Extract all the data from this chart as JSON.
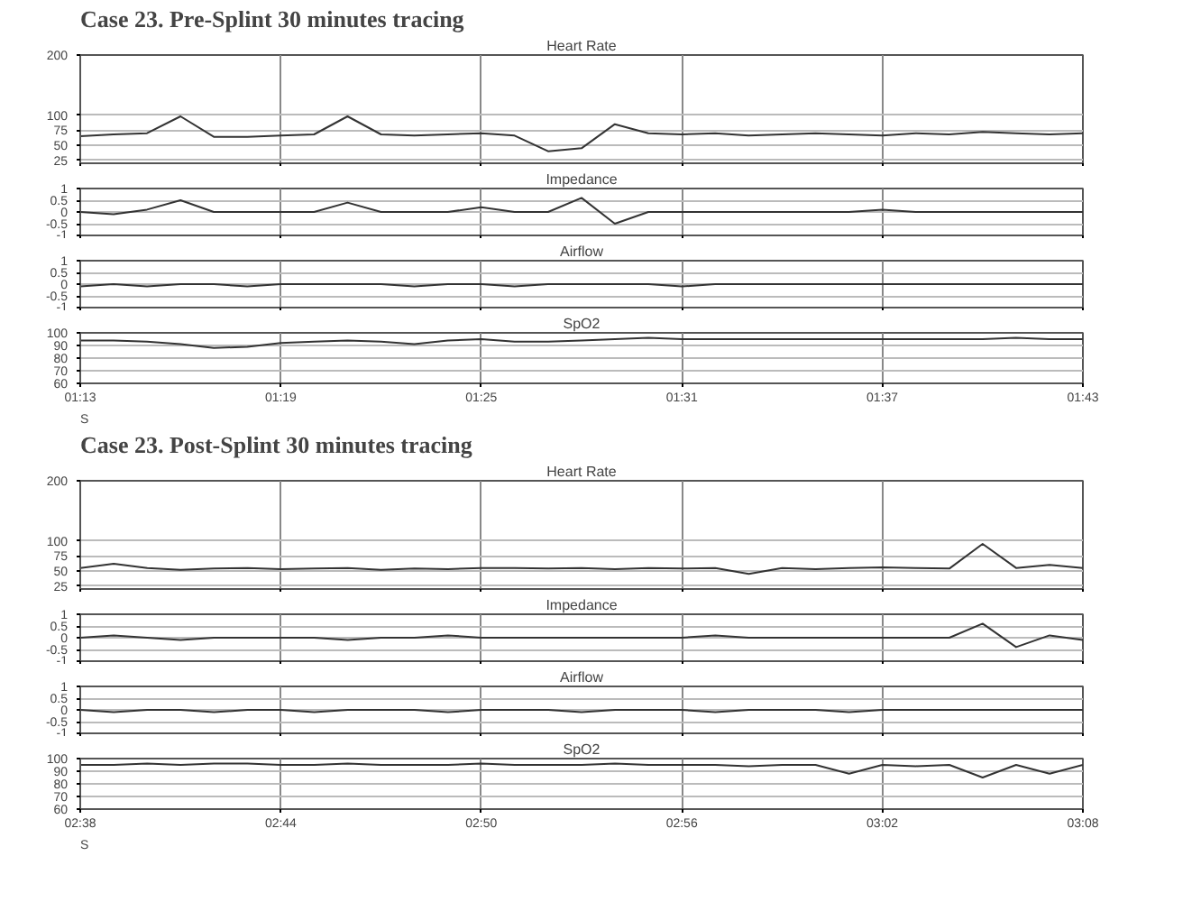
{
  "chart_data": [
    {
      "type": "line",
      "title": "Case 23. Pre-Splint 30 minutes tracing",
      "subtitle": "Heart Rate",
      "x": [
        1.2167,
        1.2333,
        1.25,
        1.2667,
        1.2833,
        1.3,
        1.3167,
        1.3333,
        1.35,
        1.3667,
        1.3833,
        1.4,
        1.4167,
        1.4333,
        1.45,
        1.4667,
        1.4833,
        1.5,
        1.5167,
        1.5333,
        1.55,
        1.5667,
        1.5833,
        1.6,
        1.6167,
        1.6333,
        1.65,
        1.6667,
        1.6833,
        1.7,
        1.7167
      ],
      "series": [
        {
          "color": "#333333",
          "values": [
            65,
            68,
            70,
            98,
            64,
            64,
            66,
            68,
            98,
            68,
            66,
            68,
            70,
            66,
            40,
            45,
            85,
            70,
            68,
            70,
            66,
            68,
            70,
            68,
            66,
            70,
            68,
            72,
            70,
            68,
            70
          ]
        }
      ],
      "xlim": [
        1.2167,
        1.7167
      ],
      "xticks": [
        {
          "value": 1.2167,
          "label": null
        },
        {
          "value": 1.3167,
          "label": null
        },
        {
          "value": 1.4167,
          "label": null
        },
        {
          "value": 1.5167,
          "label": null
        },
        {
          "value": 1.6167,
          "label": null
        },
        {
          "value": 1.7167,
          "label": null
        }
      ],
      "ylim": [
        20,
        200
      ],
      "yticks": [
        25,
        50,
        75,
        100,
        200
      ],
      "grid": true,
      "tick_labels": "y"
    },
    {
      "type": "line",
      "title": "Impedance",
      "x": [
        1.2167,
        1.2333,
        1.25,
        1.2667,
        1.2833,
        1.3,
        1.3167,
        1.3333,
        1.35,
        1.3667,
        1.3833,
        1.4,
        1.4167,
        1.4333,
        1.45,
        1.4667,
        1.4833,
        1.5,
        1.5167,
        1.5333,
        1.55,
        1.5667,
        1.5833,
        1.6,
        1.6167,
        1.6333,
        1.65,
        1.6667,
        1.6833,
        1.7,
        1.7167
      ],
      "series": [
        {
          "color": "#333333",
          "values": [
            0,
            -0.1,
            0.1,
            0.5,
            0,
            0,
            0,
            0,
            0.4,
            0,
            0,
            0,
            0.2,
            0,
            0,
            0.6,
            -0.5,
            0,
            0,
            0,
            0,
            0,
            0,
            0,
            0.1,
            0,
            0,
            0,
            0,
            0,
            0
          ]
        }
      ],
      "xlim": [
        1.2167,
        1.7167
      ],
      "xticks": [
        {
          "value": 1.2167,
          "label": null
        },
        {
          "value": 1.3167,
          "label": null
        },
        {
          "value": 1.4167,
          "label": null
        },
        {
          "value": 1.5167,
          "label": null
        },
        {
          "value": 1.6167,
          "label": null
        },
        {
          "value": 1.7167,
          "label": null
        }
      ],
      "ylim": [
        -1,
        1
      ],
      "yticks": [
        -1,
        -0.5,
        0,
        0.5,
        1
      ],
      "grid": true,
      "tick_labels": "y"
    },
    {
      "type": "line",
      "title": "Airflow",
      "x": [
        1.2167,
        1.2333,
        1.25,
        1.2667,
        1.2833,
        1.3,
        1.3167,
        1.3333,
        1.35,
        1.3667,
        1.3833,
        1.4,
        1.4167,
        1.4333,
        1.45,
        1.4667,
        1.4833,
        1.5,
        1.5167,
        1.5333,
        1.55,
        1.5667,
        1.5833,
        1.6,
        1.6167,
        1.6333,
        1.65,
        1.6667,
        1.6833,
        1.7,
        1.7167
      ],
      "series": [
        {
          "color": "#333333",
          "values": [
            -0.1,
            0,
            -0.1,
            0,
            0,
            -0.1,
            0,
            0,
            0,
            0,
            -0.1,
            0,
            0,
            -0.1,
            0,
            0,
            0,
            0,
            -0.1,
            0,
            0,
            0,
            0,
            0,
            0,
            0,
            0,
            0,
            0,
            0,
            0
          ]
        }
      ],
      "xlim": [
        1.2167,
        1.7167
      ],
      "xticks": [
        {
          "value": 1.2167,
          "label": null
        },
        {
          "value": 1.3167,
          "label": null
        },
        {
          "value": 1.4167,
          "label": null
        },
        {
          "value": 1.5167,
          "label": null
        },
        {
          "value": 1.6167,
          "label": null
        },
        {
          "value": 1.7167,
          "label": null
        }
      ],
      "ylim": [
        -1,
        1
      ],
      "yticks": [
        -1,
        -0.5,
        0,
        0.5,
        1
      ],
      "grid": true,
      "tick_labels": "y"
    },
    {
      "type": "line",
      "title": "SpO2",
      "annotations": [
        "S"
      ],
      "x": [
        1.2167,
        1.2333,
        1.25,
        1.2667,
        1.2833,
        1.3,
        1.3167,
        1.3333,
        1.35,
        1.3667,
        1.3833,
        1.4,
        1.4167,
        1.4333,
        1.45,
        1.4667,
        1.4833,
        1.5,
        1.5167,
        1.5333,
        1.55,
        1.5667,
        1.5833,
        1.6,
        1.6167,
        1.6333,
        1.65,
        1.6667,
        1.6833,
        1.7,
        1.7167
      ],
      "series": [
        {
          "color": "#333333",
          "values": [
            94,
            94,
            93,
            91,
            88,
            89,
            92,
            93,
            94,
            93,
            91,
            94,
            95,
            93,
            93,
            94,
            95,
            96,
            95,
            95,
            95,
            95,
            95,
            95,
            95,
            95,
            95,
            95,
            96,
            95,
            95
          ]
        }
      ],
      "xlim": [
        1.2167,
        1.7167
      ],
      "xticks": [
        {
          "value": 1.2167,
          "label": "01:13"
        },
        {
          "value": 1.3167,
          "label": "01:19"
        },
        {
          "value": 1.4167,
          "label": "01:25"
        },
        {
          "value": 1.5167,
          "label": "01:31"
        },
        {
          "value": 1.6167,
          "label": "01:37"
        },
        {
          "value": 1.7167,
          "label": "01:43"
        }
      ],
      "ylim": [
        60,
        100
      ],
      "yticks": [
        60,
        70,
        80,
        90,
        100
      ],
      "grid": true
    },
    {
      "type": "line",
      "title": "Case 23. Post-Splint 30 minutes tracing",
      "subtitle": "Heart Rate",
      "x": [
        2.6333,
        2.65,
        2.6667,
        2.6833,
        2.7,
        2.7167,
        2.7333,
        2.75,
        2.7667,
        2.7833,
        2.8,
        2.8167,
        2.8333,
        2.85,
        2.8667,
        2.8833,
        2.9,
        2.9167,
        2.9333,
        2.95,
        2.9667,
        2.9833,
        3.0,
        3.0167,
        3.0333,
        3.05,
        3.0667,
        3.0833,
        3.1,
        3.1167,
        3.1333
      ],
      "series": [
        {
          "color": "#333333",
          "values": [
            55,
            62,
            55,
            52,
            54,
            55,
            53,
            54,
            55,
            52,
            54,
            53,
            55,
            55,
            54,
            55,
            53,
            55,
            54,
            55,
            45,
            55,
            53,
            55,
            56,
            55,
            54,
            95,
            55,
            60,
            55
          ]
        }
      ],
      "xlim": [
        2.6333,
        3.1333
      ],
      "xticks": [
        {
          "value": 2.6333,
          "label": null
        },
        {
          "value": 2.7333,
          "label": null
        },
        {
          "value": 2.8333,
          "label": null
        },
        {
          "value": 2.9333,
          "label": null
        },
        {
          "value": 3.0333,
          "label": null
        },
        {
          "value": 3.1333,
          "label": null
        }
      ],
      "ylim": [
        20,
        200
      ],
      "yticks": [
        25,
        50,
        75,
        100,
        200
      ],
      "grid": true,
      "tick_labels": "y"
    },
    {
      "type": "line",
      "title": "Impedance",
      "x": [
        2.6333,
        2.65,
        2.6667,
        2.6833,
        2.7,
        2.7167,
        2.7333,
        2.75,
        2.7667,
        2.7833,
        2.8,
        2.8167,
        2.8333,
        2.85,
        2.8667,
        2.8833,
        2.9,
        2.9167,
        2.9333,
        2.95,
        2.9667,
        2.9833,
        3.0,
        3.0167,
        3.0333,
        3.05,
        3.0667,
        3.0833,
        3.1,
        3.1167,
        3.1333
      ],
      "series": [
        {
          "color": "#333333",
          "values": [
            0,
            0.1,
            0,
            -0.1,
            0,
            0,
            0,
            0,
            -0.1,
            0,
            0,
            0.1,
            0,
            0,
            0,
            0,
            0,
            0,
            0,
            0.1,
            0,
            0,
            0,
            0,
            0,
            0,
            0,
            0.6,
            -0.4,
            0.1,
            -0.1
          ]
        }
      ],
      "xlim": [
        2.6333,
        3.1333
      ],
      "xticks": [
        {
          "value": 2.6333,
          "label": null
        },
        {
          "value": 2.7333,
          "label": null
        },
        {
          "value": 2.8333,
          "label": null
        },
        {
          "value": 2.9333,
          "label": null
        },
        {
          "value": 3.0333,
          "label": null
        },
        {
          "value": 3.1333,
          "label": null
        }
      ],
      "ylim": [
        -1,
        1
      ],
      "yticks": [
        -1,
        -0.5,
        0,
        0.5,
        1
      ],
      "grid": true,
      "tick_labels": "y"
    },
    {
      "type": "line",
      "title": "Airflow",
      "x": [
        2.6333,
        2.65,
        2.6667,
        2.6833,
        2.7,
        2.7167,
        2.7333,
        2.75,
        2.7667,
        2.7833,
        2.8,
        2.8167,
        2.8333,
        2.85,
        2.8667,
        2.8833,
        2.9,
        2.9167,
        2.9333,
        2.95,
        2.9667,
        2.9833,
        3.0,
        3.0167,
        3.0333,
        3.05,
        3.0667,
        3.0833,
        3.1,
        3.1167,
        3.1333
      ],
      "series": [
        {
          "color": "#333333",
          "values": [
            0,
            -0.1,
            0,
            0,
            -0.1,
            0,
            0,
            -0.1,
            0,
            0,
            0,
            -0.1,
            0,
            0,
            0,
            -0.1,
            0,
            0,
            0,
            -0.1,
            0,
            0,
            0,
            -0.1,
            0,
            0,
            0,
            0,
            0,
            0,
            0
          ]
        }
      ],
      "xlim": [
        2.6333,
        3.1333
      ],
      "xticks": [
        {
          "value": 2.6333,
          "label": null
        },
        {
          "value": 2.7333,
          "label": null
        },
        {
          "value": 2.8333,
          "label": null
        },
        {
          "value": 2.9333,
          "label": null
        },
        {
          "value": 3.0333,
          "label": null
        },
        {
          "value": 3.1333,
          "label": null
        }
      ],
      "ylim": [
        -1,
        1
      ],
      "yticks": [
        -1,
        -0.5,
        0,
        0.5,
        1
      ],
      "grid": true,
      "tick_labels": "y"
    },
    {
      "type": "line",
      "title": "SpO2",
      "annotations": [
        "S"
      ],
      "x": [
        2.6333,
        2.65,
        2.6667,
        2.6833,
        2.7,
        2.7167,
        2.7333,
        2.75,
        2.7667,
        2.7833,
        2.8,
        2.8167,
        2.8333,
        2.85,
        2.8667,
        2.8833,
        2.9,
        2.9167,
        2.9333,
        2.95,
        2.9667,
        2.9833,
        3.0,
        3.0167,
        3.0333,
        3.05,
        3.0667,
        3.0833,
        3.1,
        3.1167,
        3.1333
      ],
      "series": [
        {
          "color": "#333333",
          "values": [
            95,
            95,
            96,
            95,
            96,
            96,
            95,
            95,
            96,
            95,
            95,
            95,
            96,
            95,
            95,
            95,
            96,
            95,
            95,
            95,
            94,
            95,
            95,
            88,
            95,
            94,
            95,
            85,
            95,
            88,
            95
          ]
        }
      ],
      "xlim": [
        2.6333,
        3.1333
      ],
      "xticks": [
        {
          "value": 2.6333,
          "label": "02:38"
        },
        {
          "value": 2.7333,
          "label": "02:44"
        },
        {
          "value": 2.8333,
          "label": "02:50"
        },
        {
          "value": 2.9333,
          "label": "02:56"
        },
        {
          "value": 3.0333,
          "label": "03:02"
        },
        {
          "value": 3.1333,
          "label": "03:08"
        }
      ],
      "ylim": [
        60,
        100
      ],
      "yticks": [
        60,
        70,
        80,
        90,
        100
      ],
      "grid": true
    }
  ]
}
